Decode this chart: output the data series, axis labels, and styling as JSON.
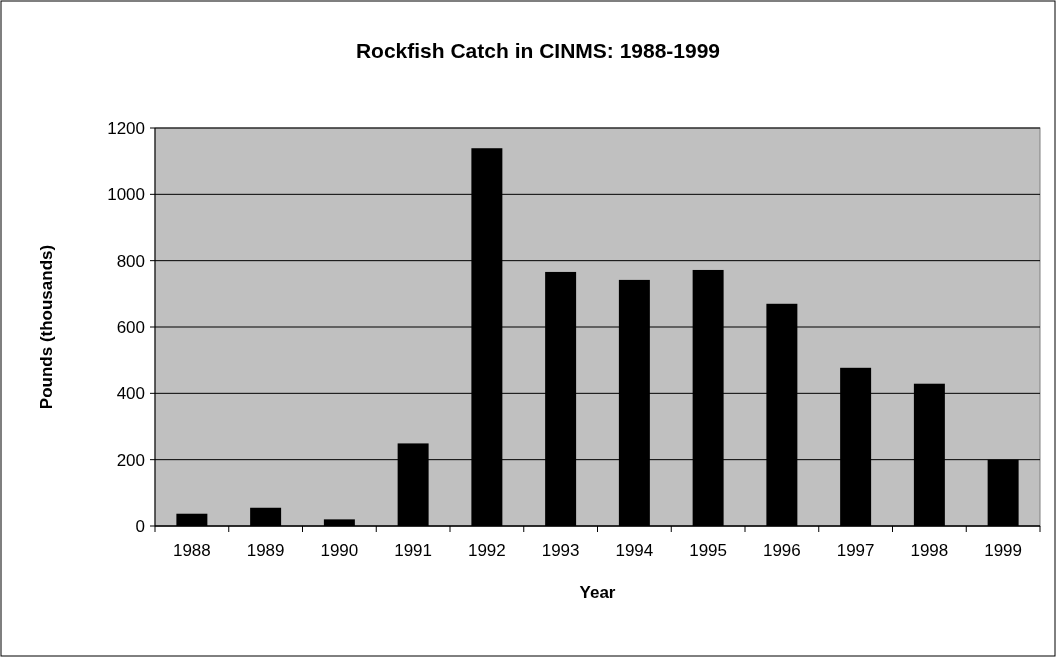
{
  "chart_data": {
    "type": "bar",
    "title": "Rockfish Catch in CINMS:  1988-1999",
    "xlabel": "Year",
    "ylabel": "Pounds (thousands)",
    "categories": [
      "1988",
      "1989",
      "1990",
      "1991",
      "1992",
      "1993",
      "1994",
      "1995",
      "1996",
      "1997",
      "1998",
      "1999"
    ],
    "values": [
      37,
      55,
      20,
      249,
      1139,
      766,
      742,
      772,
      670,
      477,
      429,
      200
    ],
    "color": "#000000",
    "ylim": [
      0,
      1200
    ],
    "yticks": [
      0,
      200,
      400,
      600,
      800,
      1000,
      1200
    ],
    "grid": "y"
  }
}
